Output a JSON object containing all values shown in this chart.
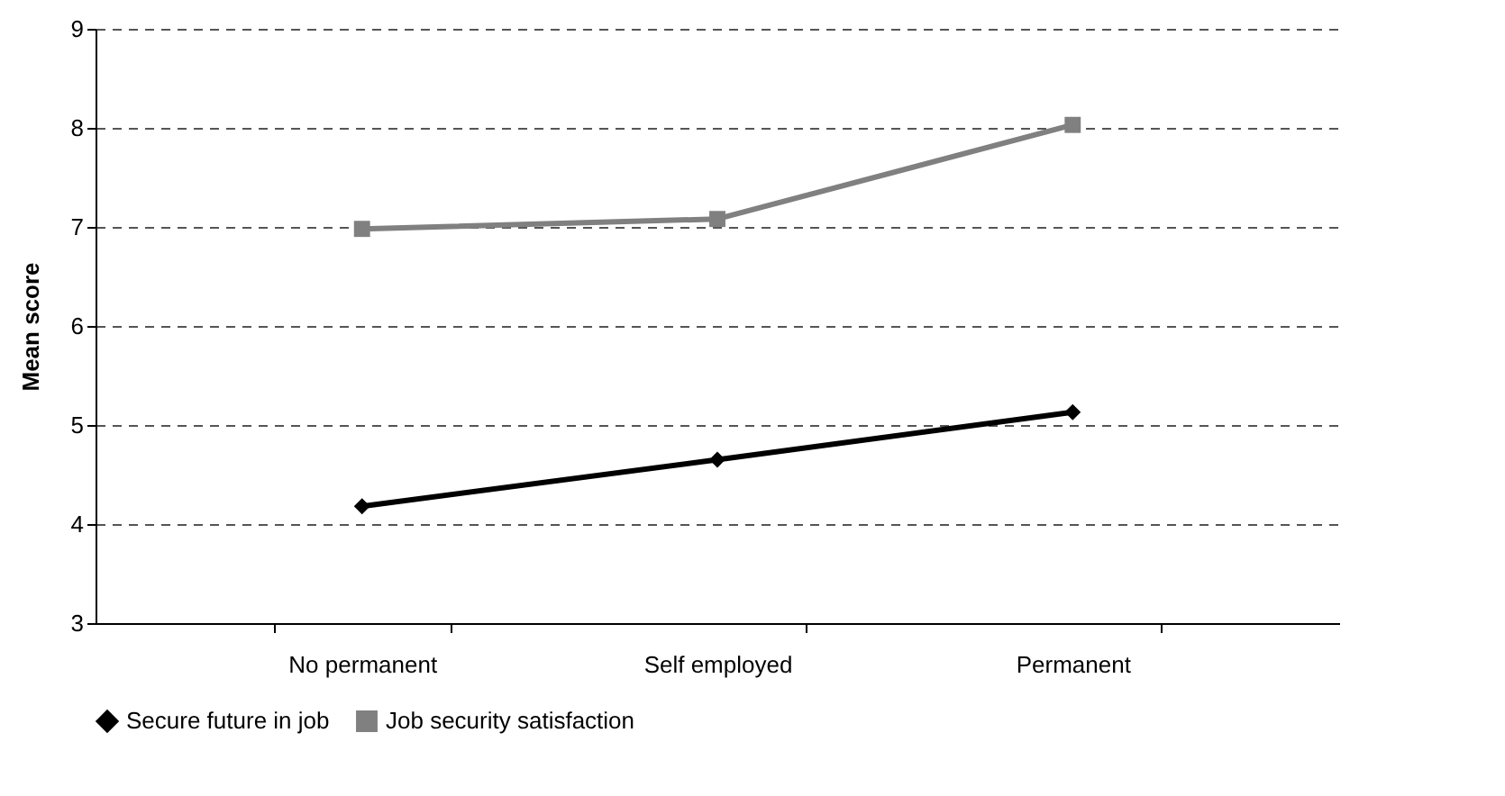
{
  "chart_data": {
    "type": "line",
    "ylabel": "Mean score",
    "categories": [
      "No permanent",
      "Self employed",
      "Permanent"
    ],
    "series": [
      {
        "name": "Secure future in job",
        "color": "#000000",
        "marker": "diamond",
        "values": [
          4.18,
          4.65,
          5.13
        ]
      },
      {
        "name": "Job security satisfaction",
        "color": "#808080",
        "marker": "square",
        "values": [
          6.98,
          7.08,
          8.03
        ]
      }
    ],
    "ylim": [
      3,
      9
    ],
    "yticks": [
      3,
      4,
      5,
      6,
      7,
      8,
      9
    ],
    "grid": "y",
    "legend": "bottom"
  }
}
